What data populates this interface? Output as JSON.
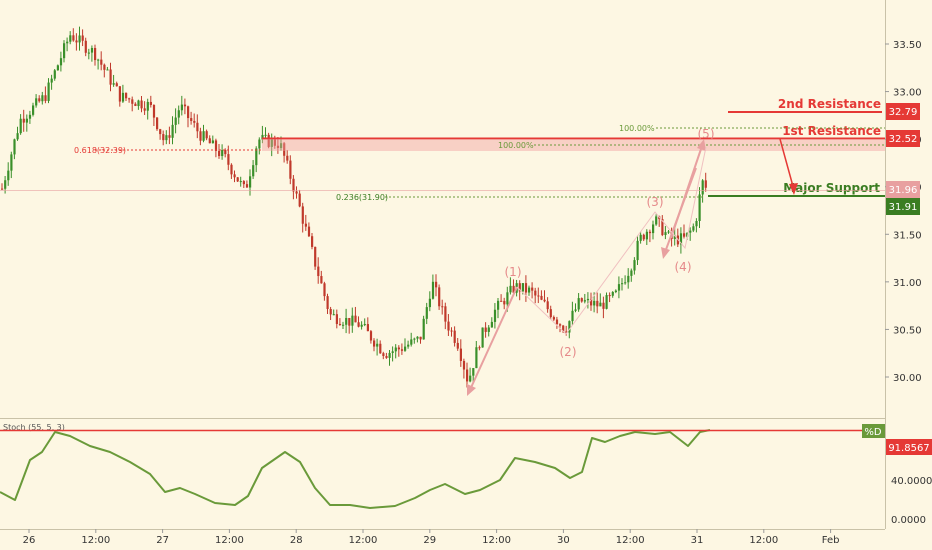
{
  "chart_data": {
    "type": "candlestick",
    "price_axis": {
      "ticks": [
        "33.50",
        "33.00",
        "32.50",
        "32.00",
        "31.50",
        "31.00",
        "30.50",
        "30.00"
      ],
      "ylim": [
        29.6,
        33.9
      ]
    },
    "time_axis": {
      "ticks": [
        "26",
        "12:00",
        "27",
        "12:00",
        "28",
        "12:00",
        "29",
        "12:00",
        "30",
        "12:00",
        "31",
        "12:00",
        "Feb"
      ]
    },
    "levels": {
      "second_resistance": {
        "label": "2nd Resistance",
        "value": 32.79,
        "badge": "32.79",
        "color": "#e53935"
      },
      "first_resistance": {
        "label": "1st Resistance",
        "value": 32.52,
        "badge": "32.52",
        "color": "#e53935"
      },
      "major_support": {
        "label": "Major Support",
        "value": 31.91,
        "badge": "31.91",
        "color": "#3a7d22"
      },
      "current_price": {
        "value": 31.96,
        "badge": "31.96",
        "color": "#e8a0a0"
      }
    },
    "fibonacci": {
      "fib_618": {
        "label": "0.618(32.39)",
        "value": 32.39
      },
      "fib_236": {
        "label": "0.236(31.90)",
        "value": 31.9
      },
      "ext_100_upper": {
        "label": "100.00%",
        "value": 32.66
      },
      "ext_100_lower": {
        "label": "100.00%",
        "value": 32.5
      }
    },
    "waves": [
      {
        "label": "(1)",
        "value": 30.98
      },
      {
        "label": "(2)",
        "value": 30.45
      },
      {
        "label": "(3)",
        "value": 31.7
      },
      {
        "label": "(4)",
        "value": 31.35
      },
      {
        "label": "(5)",
        "value": 32.35
      }
    ],
    "indicator": {
      "name": "Stoch (55, 5, 3)",
      "legend": "%D",
      "value_badge": "91.8567",
      "ticks": [
        "40.0000",
        "0.0000"
      ],
      "ylim": [
        0,
        100
      ],
      "level": 94,
      "color": "#6a9a3a"
    }
  }
}
